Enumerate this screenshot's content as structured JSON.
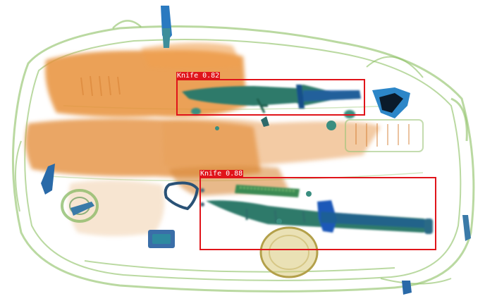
{
  "image": {
    "type": "x-ray baggage scan"
  },
  "colors": {
    "box": "#e0141a",
    "label_bg": "#e0141a",
    "label_text": "#ffffff",
    "background": "#ffffff",
    "organic": "#e8913a",
    "inorganic": "#2f7a9a",
    "metal": "#1a5bb8",
    "bag_outline": "#7fb55a"
  },
  "detections": [
    {
      "label": "Knife 0.82",
      "class": "Knife",
      "score": 0.82
    },
    {
      "label": "Knife 0.88",
      "class": "Knife",
      "score": 0.88
    }
  ]
}
